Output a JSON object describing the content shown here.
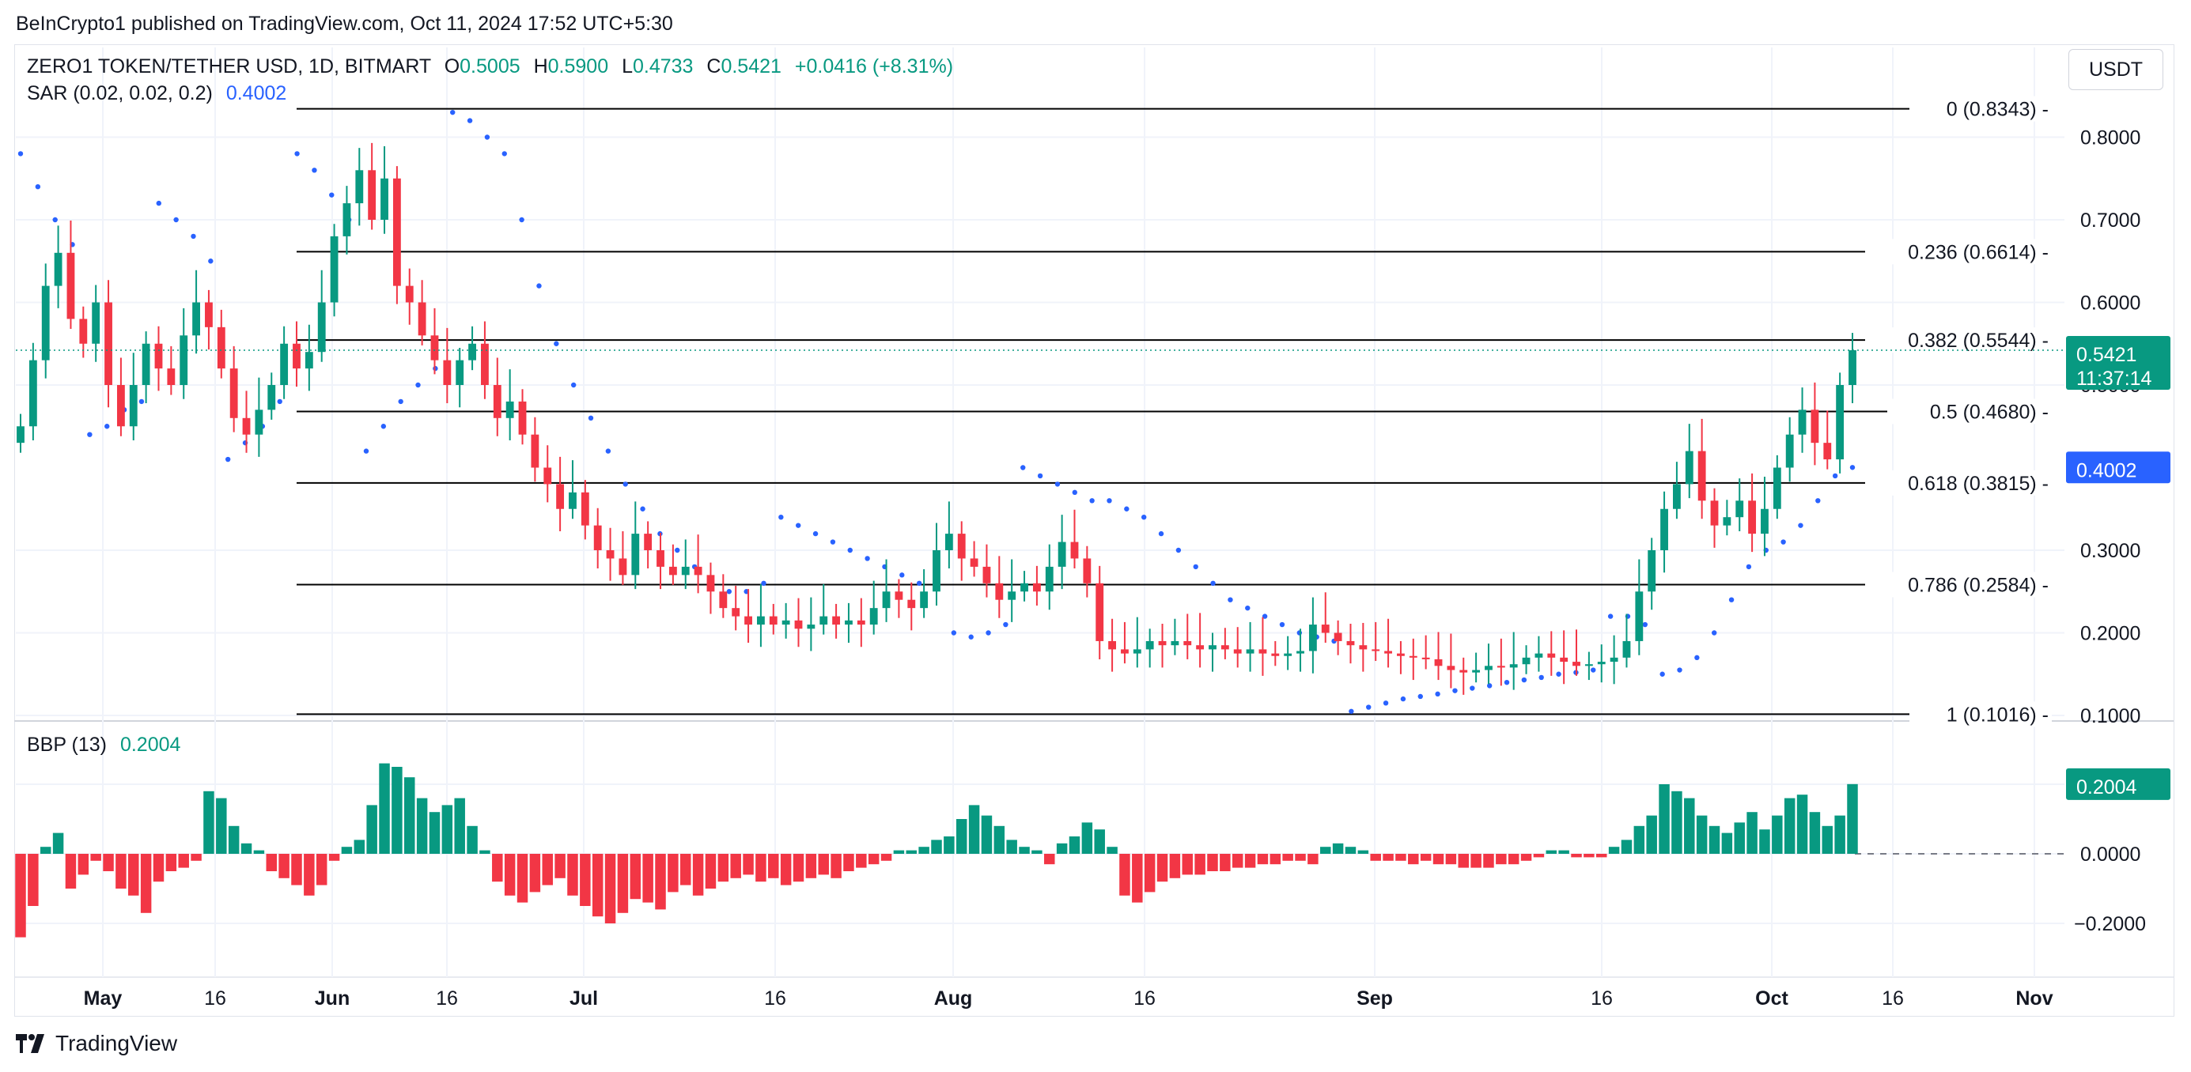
{
  "header": {
    "publish_text": "BeInCrypto1 published on TradingView.com, Oct 11, 2024 17:52 UTC+5:30"
  },
  "legend": {
    "symbol": "ZERO1 TOKEN/TETHER USD, 1D, BITMART",
    "o_label": "O",
    "o_value": "0.5005",
    "h_label": "H",
    "h_value": "0.5900",
    "l_label": "L",
    "l_value": "0.4733",
    "c_label": "C",
    "c_value": "0.5421",
    "change": "+0.0416 (+8.31%)",
    "sar_label": "SAR (0.02, 0.02, 0.2)",
    "sar_value": "0.4002",
    "bbp_label": "BBP (13)",
    "bbp_value": "0.2004"
  },
  "currency_button": "USDT",
  "footer": {
    "brand": "TradingView"
  },
  "colors": {
    "up": "#089981",
    "down": "#f23645",
    "sar": "#2962ff",
    "fib": "#000000",
    "grid": "#f0f3fa"
  },
  "chart_data": [
    {
      "type": "candlestick",
      "title": "ZERO1 TOKEN/TETHER USD, 1D, BITMART",
      "ylim": [
        0.1,
        0.85
      ],
      "y_ticks": [
        "0.8000",
        "0.7000",
        "0.6000",
        "0.5000",
        "0.3000",
        "0.2000",
        "0.1000"
      ],
      "x_ticks": [
        "May",
        "16",
        "Jun",
        "16",
        "Jul",
        "16",
        "Aug",
        "16",
        "Sep",
        "16",
        "Oct",
        "16",
        "Nov"
      ],
      "grid": true,
      "last_price": {
        "value": "0.5421",
        "countdown": "11:37:14"
      },
      "sar_last": "0.4002",
      "fib_levels": [
        {
          "label": "0 (0.8343)",
          "value": 0.8343
        },
        {
          "label": "0.236 (0.6614)",
          "value": 0.6614
        },
        {
          "label": "0.382 (0.5544)",
          "value": 0.5544
        },
        {
          "label": "0.5 (0.4680)",
          "value": 0.468
        },
        {
          "label": "0.618 (0.3815)",
          "value": 0.3815
        },
        {
          "label": "0.786 (0.2584)",
          "value": 0.2584
        },
        {
          "label": "1 (0.1016)",
          "value": 0.1016
        }
      ],
      "close_series": [
        0.45,
        0.53,
        0.62,
        0.66,
        0.58,
        0.55,
        0.6,
        0.5,
        0.45,
        0.5,
        0.55,
        0.52,
        0.5,
        0.56,
        0.6,
        0.57,
        0.52,
        0.46,
        0.44,
        0.47,
        0.5,
        0.55,
        0.52,
        0.54,
        0.6,
        0.68,
        0.72,
        0.76,
        0.7,
        0.75,
        0.62,
        0.6,
        0.56,
        0.53,
        0.5,
        0.53,
        0.55,
        0.5,
        0.46,
        0.48,
        0.44,
        0.4,
        0.38,
        0.35,
        0.37,
        0.33,
        0.3,
        0.29,
        0.27,
        0.32,
        0.3,
        0.28,
        0.27,
        0.28,
        0.27,
        0.25,
        0.23,
        0.22,
        0.21,
        0.22,
        0.21,
        0.215,
        0.205,
        0.21,
        0.22,
        0.21,
        0.215,
        0.21,
        0.23,
        0.25,
        0.24,
        0.23,
        0.25,
        0.3,
        0.32,
        0.29,
        0.28,
        0.26,
        0.24,
        0.25,
        0.26,
        0.25,
        0.28,
        0.31,
        0.29,
        0.26,
        0.19,
        0.18,
        0.175,
        0.18,
        0.19,
        0.185,
        0.19,
        0.185,
        0.18,
        0.185,
        0.18,
        0.175,
        0.18,
        0.175,
        0.172,
        0.175,
        0.178,
        0.21,
        0.2,
        0.19,
        0.185,
        0.18,
        0.178,
        0.175,
        0.172,
        0.17,
        0.168,
        0.16,
        0.155,
        0.152,
        0.155,
        0.16,
        0.158,
        0.162,
        0.17,
        0.175,
        0.17,
        0.165,
        0.16,
        0.162,
        0.165,
        0.17,
        0.19,
        0.25,
        0.3,
        0.35,
        0.38,
        0.42,
        0.36,
        0.33,
        0.34,
        0.36,
        0.32,
        0.35,
        0.4,
        0.44,
        0.47,
        0.43,
        0.41,
        0.5,
        0.5421
      ],
      "sar_series": [
        0.78,
        0.74,
        0.7,
        0.67,
        0.44,
        0.45,
        0.47,
        0.48,
        0.72,
        0.7,
        0.68,
        0.65,
        0.41,
        0.43,
        0.45,
        0.48,
        0.78,
        0.76,
        0.73,
        0.7,
        0.42,
        0.45,
        0.48,
        0.5,
        0.52,
        0.83,
        0.82,
        0.8,
        0.78,
        0.7,
        0.62,
        0.55,
        0.5,
        0.46,
        0.42,
        0.38,
        0.35,
        0.32,
        0.3,
        0.28,
        0.26,
        0.25,
        0.25,
        0.26,
        0.34,
        0.33,
        0.32,
        0.31,
        0.3,
        0.29,
        0.28,
        0.27,
        0.26,
        0.26,
        0.2,
        0.195,
        0.2,
        0.21,
        0.4,
        0.39,
        0.38,
        0.37,
        0.36,
        0.36,
        0.35,
        0.34,
        0.32,
        0.3,
        0.28,
        0.26,
        0.24,
        0.23,
        0.22,
        0.21,
        0.2,
        0.195,
        0.19,
        0.105,
        0.11,
        0.115,
        0.12,
        0.123,
        0.126,
        0.13,
        0.133,
        0.136,
        0.14,
        0.143,
        0.146,
        0.15,
        0.152,
        0.155,
        0.22,
        0.22,
        0.21,
        0.15,
        0.155,
        0.17,
        0.2,
        0.24,
        0.28,
        0.3,
        0.31,
        0.33,
        0.36,
        0.39,
        0.4002
      ]
    },
    {
      "type": "bar",
      "title": "BBP (13)",
      "ylim": [
        -0.3,
        0.3
      ],
      "y_ticks": [
        "0.2004",
        "0.0000",
        "−0.2000"
      ],
      "last_value": "0.2004",
      "values": [
        -0.24,
        -0.15,
        0.02,
        0.06,
        -0.1,
        -0.06,
        -0.02,
        -0.05,
        -0.1,
        -0.12,
        -0.17,
        -0.08,
        -0.05,
        -0.04,
        -0.02,
        0.18,
        0.16,
        0.08,
        0.03,
        0.01,
        -0.05,
        -0.07,
        -0.09,
        -0.12,
        -0.09,
        -0.02,
        0.02,
        0.04,
        0.14,
        0.26,
        0.25,
        0.22,
        0.16,
        0.12,
        0.14,
        0.16,
        0.08,
        0.01,
        -0.08,
        -0.12,
        -0.14,
        -0.11,
        -0.09,
        -0.07,
        -0.12,
        -0.15,
        -0.18,
        -0.2,
        -0.17,
        -0.13,
        -0.14,
        -0.16,
        -0.11,
        -0.09,
        -0.12,
        -0.1,
        -0.08,
        -0.07,
        -0.06,
        -0.08,
        -0.07,
        -0.09,
        -0.08,
        -0.07,
        -0.06,
        -0.07,
        -0.05,
        -0.04,
        -0.03,
        -0.02,
        0.01,
        0.01,
        0.02,
        0.04,
        0.05,
        0.1,
        0.14,
        0.11,
        0.08,
        0.04,
        0.02,
        0.01,
        -0.03,
        0.03,
        0.05,
        0.09,
        0.07,
        0.02,
        -0.12,
        -0.14,
        -0.11,
        -0.08,
        -0.07,
        -0.06,
        -0.06,
        -0.05,
        -0.05,
        -0.04,
        -0.04,
        -0.03,
        -0.03,
        -0.02,
        -0.02,
        -0.03,
        0.02,
        0.03,
        0.02,
        0.01,
        -0.02,
        -0.02,
        -0.02,
        -0.03,
        -0.02,
        -0.03,
        -0.03,
        -0.04,
        -0.04,
        -0.04,
        -0.03,
        -0.03,
        -0.02,
        -0.01,
        0.01,
        0.01,
        -0.01,
        -0.01,
        -0.01,
        0.02,
        0.04,
        0.08,
        0.11,
        0.2,
        0.18,
        0.16,
        0.11,
        0.08,
        0.06,
        0.09,
        0.12,
        0.07,
        0.11,
        0.16,
        0.17,
        0.12,
        0.08,
        0.11,
        0.2004
      ]
    }
  ]
}
